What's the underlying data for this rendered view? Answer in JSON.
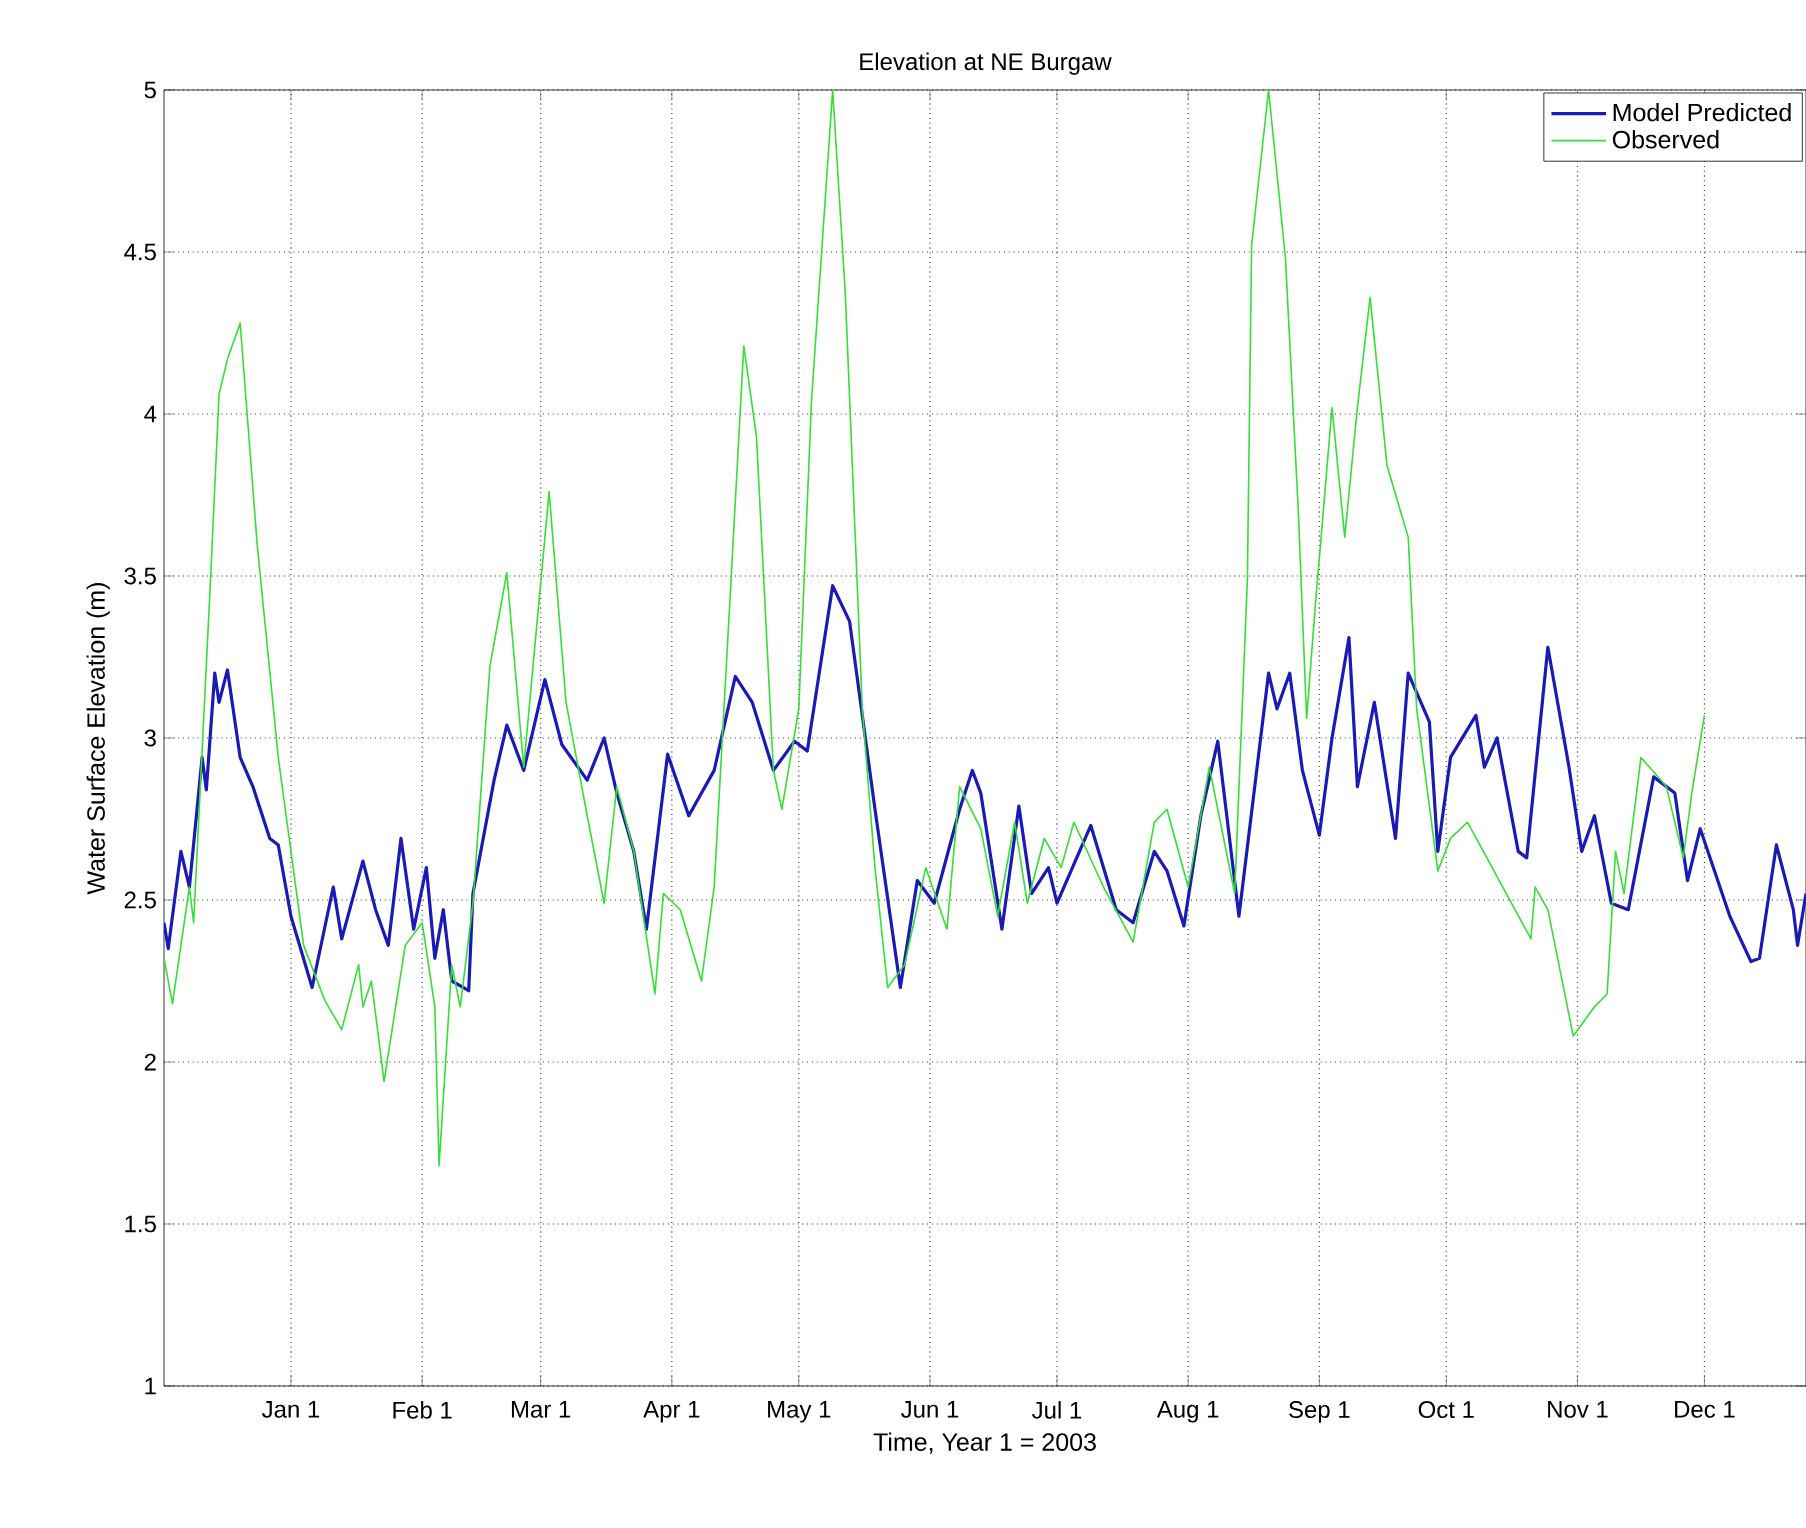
{
  "chart_data": {
    "type": "line",
    "title": "Elevation at NE Burgaw",
    "xlabel": "Time, Year 1 = 2003",
    "ylabel": "Water Surface Elevation (m)",
    "xlim": [
      "2002-12-02",
      "2003-12-25"
    ],
    "ylim": [
      1,
      5
    ],
    "xticks": [
      {
        "value": "2003-01-01",
        "label": "Jan 1"
      },
      {
        "value": "2003-02-01",
        "label": "Feb 1"
      },
      {
        "value": "2003-03-01",
        "label": "Mar 1"
      },
      {
        "value": "2003-04-01",
        "label": "Apr 1"
      },
      {
        "value": "2003-05-01",
        "label": "May 1"
      },
      {
        "value": "2003-06-01",
        "label": "Jun 1"
      },
      {
        "value": "2003-07-01",
        "label": "Jul 1"
      },
      {
        "value": "2003-08-01",
        "label": "Aug 1"
      },
      {
        "value": "2003-09-01",
        "label": "Sep 1"
      },
      {
        "value": "2003-10-01",
        "label": "Oct 1"
      },
      {
        "value": "2003-11-01",
        "label": "Nov 1"
      },
      {
        "value": "2003-12-01",
        "label": "Dec 1"
      }
    ],
    "yticks": [
      1,
      1.5,
      2,
      2.5,
      3,
      3.5,
      4,
      4.5,
      5
    ],
    "grid": true,
    "legend": "top right",
    "marker": "none",
    "line_style": "solid",
    "series": [
      {
        "name": "Model Predicted",
        "color": "#1a1ab4",
        "x": [
          "2002-12-02",
          "2002-12-03",
          "2002-12-06",
          "2002-12-08",
          "2002-12-11",
          "2002-12-12",
          "2002-12-14",
          "2002-12-15",
          "2002-12-17",
          "2002-12-20",
          "2002-12-23",
          "2002-12-27",
          "2002-12-29",
          "2003-01-01",
          "2003-01-06",
          "2003-01-11",
          "2003-01-13",
          "2003-01-18",
          "2003-01-21",
          "2003-01-24",
          "2003-01-27",
          "2003-01-30",
          "2003-02-02",
          "2003-02-04",
          "2003-02-06",
          "2003-02-08",
          "2003-02-12",
          "2003-02-13",
          "2003-02-18",
          "2003-02-21",
          "2003-02-25",
          "2003-03-02",
          "2003-03-06",
          "2003-03-12",
          "2003-03-16",
          "2003-03-19",
          "2003-03-23",
          "2003-03-26",
          "2003-03-31",
          "2003-04-05",
          "2003-04-11",
          "2003-04-16",
          "2003-04-20",
          "2003-04-25",
          "2003-04-30",
          "2003-05-03",
          "2003-05-09",
          "2003-05-13",
          "2003-05-19",
          "2003-05-25",
          "2003-05-29",
          "2003-06-02",
          "2003-06-08",
          "2003-06-11",
          "2003-06-13",
          "2003-06-18",
          "2003-06-22",
          "2003-06-25",
          "2003-06-29",
          "2003-07-01",
          "2003-07-09",
          "2003-07-15",
          "2003-07-19",
          "2003-07-24",
          "2003-07-27",
          "2003-07-31",
          "2003-08-04",
          "2003-08-08",
          "2003-08-13",
          "2003-08-20",
          "2003-08-22",
          "2003-08-25",
          "2003-08-28",
          "2003-09-01",
          "2003-09-04",
          "2003-09-08",
          "2003-09-10",
          "2003-09-14",
          "2003-09-19",
          "2003-09-22",
          "2003-09-27",
          "2003-09-29",
          "2003-10-02",
          "2003-10-08",
          "2003-10-10",
          "2003-10-13",
          "2003-10-18",
          "2003-10-20",
          "2003-10-25",
          "2003-10-30",
          "2003-11-02",
          "2003-11-05",
          "2003-11-09",
          "2003-11-13",
          "2003-11-19",
          "2003-11-24",
          "2003-11-27",
          "2003-11-30",
          "2003-12-07",
          "2003-12-12",
          "2003-12-14",
          "2003-12-18",
          "2003-12-22",
          "2003-12-23",
          "2003-12-25"
        ],
        "values": [
          2.43,
          2.35,
          2.65,
          2.54,
          2.94,
          2.84,
          3.2,
          3.11,
          3.21,
          2.94,
          2.85,
          2.69,
          2.67,
          2.45,
          2.23,
          2.54,
          2.38,
          2.62,
          2.47,
          2.36,
          2.69,
          2.41,
          2.6,
          2.32,
          2.47,
          2.25,
          2.22,
          2.52,
          2.87,
          3.04,
          2.9,
          3.18,
          2.98,
          2.87,
          3.0,
          2.83,
          2.65,
          2.41,
          2.95,
          2.76,
          2.9,
          3.19,
          3.11,
          2.9,
          2.99,
          2.96,
          3.47,
          3.36,
          2.78,
          2.23,
          2.56,
          2.49,
          2.78,
          2.9,
          2.83,
          2.41,
          2.79,
          2.52,
          2.6,
          2.49,
          2.73,
          2.47,
          2.43,
          2.65,
          2.59,
          2.42,
          2.76,
          2.99,
          2.45,
          3.2,
          3.09,
          3.2,
          2.9,
          2.7,
          3.0,
          3.31,
          2.85,
          3.11,
          2.69,
          3.2,
          3.05,
          2.65,
          2.94,
          3.07,
          2.91,
          3.0,
          2.65,
          2.63,
          3.28,
          2.91,
          2.65,
          2.76,
          2.49,
          2.47,
          2.88,
          2.83,
          2.56,
          2.72,
          2.45,
          2.31,
          2.32,
          2.67,
          2.47,
          2.36,
          2.52
        ]
      },
      {
        "name": "Observed",
        "color": "#33e033",
        "x": [
          "2002-12-02",
          "2002-12-04",
          "2002-12-08",
          "2002-12-09",
          "2002-12-13",
          "2002-12-15",
          "2002-12-17",
          "2002-12-20",
          "2002-12-24",
          "2002-12-29",
          "2003-01-04",
          "2003-01-09",
          "2003-01-13",
          "2003-01-17",
          "2003-01-18",
          "2003-01-20",
          "2003-01-23",
          "2003-01-28",
          "2003-02-01",
          "2003-02-04",
          "2003-02-05",
          "2003-02-08",
          "2003-02-10",
          "2003-02-13",
          "2003-02-17",
          "2003-02-21",
          "2003-02-25",
          "2003-03-03",
          "2003-03-07",
          "2003-03-12",
          "2003-03-16",
          "2003-03-19",
          "2003-03-23",
          "2003-03-28",
          "2003-03-30",
          "2003-04-03",
          "2003-04-08",
          "2003-04-11",
          "2003-04-15",
          "2003-04-18",
          "2003-04-21",
          "2003-04-25",
          "2003-04-27",
          "2003-05-01",
          "2003-05-04",
          "2003-05-09",
          "2003-05-12",
          "2003-05-16",
          "2003-05-19",
          "2003-05-22",
          "2003-05-26",
          "2003-05-31",
          "2003-06-05",
          "2003-06-08",
          "2003-06-13",
          "2003-06-17",
          "2003-06-21",
          "2003-06-24",
          "2003-06-28",
          "2003-07-02",
          "2003-07-05",
          "2003-07-12",
          "2003-07-19",
          "2003-07-24",
          "2003-07-27",
          "2003-08-01",
          "2003-08-06",
          "2003-08-12",
          "2003-08-15",
          "2003-08-16",
          "2003-08-20",
          "2003-08-24",
          "2003-08-27",
          "2003-08-29",
          "2003-08-31",
          "2003-09-04",
          "2003-09-07",
          "2003-09-10",
          "2003-09-13",
          "2003-09-17",
          "2003-09-22",
          "2003-09-24",
          "2003-09-29",
          "2003-10-02",
          "2003-10-06",
          "2003-10-21",
          "2003-10-22",
          "2003-10-25",
          "2003-10-31",
          "2003-11-05",
          "2003-11-08",
          "2003-11-10",
          "2003-11-12",
          "2003-11-16",
          "2003-11-22",
          "2003-11-26",
          "2003-11-28",
          "2003-12-01"
        ],
        "values": [
          2.32,
          2.18,
          2.54,
          2.43,
          3.49,
          4.06,
          4.17,
          4.28,
          3.6,
          2.94,
          2.36,
          2.19,
          2.1,
          2.3,
          2.17,
          2.25,
          1.94,
          2.36,
          2.43,
          2.17,
          1.68,
          2.3,
          2.17,
          2.49,
          3.22,
          3.51,
          2.91,
          3.76,
          3.11,
          2.76,
          2.49,
          2.85,
          2.65,
          2.21,
          2.52,
          2.47,
          2.25,
          2.54,
          3.49,
          4.21,
          3.93,
          2.9,
          2.78,
          3.09,
          4.04,
          5.0,
          4.37,
          3.09,
          2.6,
          2.23,
          2.3,
          2.6,
          2.41,
          2.85,
          2.72,
          2.45,
          2.74,
          2.49,
          2.69,
          2.6,
          2.74,
          2.54,
          2.37,
          2.74,
          2.78,
          2.54,
          2.91,
          2.52,
          3.49,
          4.52,
          5.0,
          4.48,
          3.71,
          3.06,
          3.4,
          4.02,
          3.62,
          4.02,
          4.36,
          3.84,
          3.62,
          3.09,
          2.59,
          2.69,
          2.74,
          2.38,
          2.54,
          2.47,
          2.08,
          2.17,
          2.21,
          2.65,
          2.52,
          2.94,
          2.85,
          2.63,
          2.83,
          3.07
        ]
      }
    ]
  }
}
